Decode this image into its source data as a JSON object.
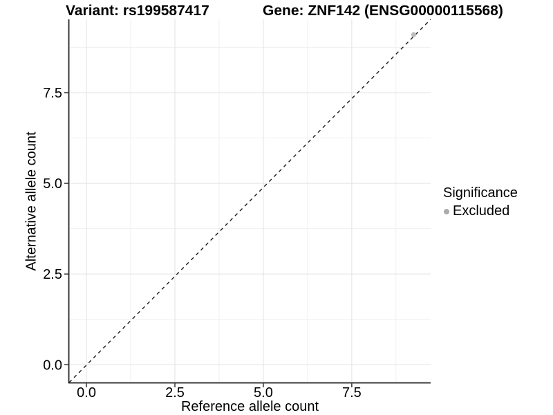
{
  "figure": {
    "title_left": "Variant: rs199587417",
    "title_right": "Gene: ZNF142 (ENSG00000115568)"
  },
  "chart_data": {
    "type": "scatter",
    "title_left": "Variant: rs199587417",
    "title_right": "Gene: ZNF142 (ENSG00000115568)",
    "xlabel": "Reference allele count",
    "ylabel": "Alternative allele count",
    "xlim": [
      -0.49,
      9.73
    ],
    "ylim": [
      -0.49,
      9.52
    ],
    "x_ticks": [
      0.0,
      2.5,
      5.0,
      7.5
    ],
    "x_tick_labels": [
      "0.0",
      "2.5",
      "5.0",
      "7.5"
    ],
    "y_ticks": [
      0.0,
      2.5,
      5.0,
      7.5
    ],
    "y_tick_labels": [
      "0.0",
      "2.5",
      "5.0",
      "7.5"
    ],
    "x_minor_ticks": [
      1.25,
      3.75,
      6.25,
      8.75
    ],
    "y_minor_ticks": [
      1.25,
      3.75,
      6.25,
      8.75
    ],
    "grid": true,
    "reference_line": {
      "kind": "identity",
      "slope": 1,
      "intercept": 0,
      "style": "dashed",
      "color": "#1a1a1a"
    },
    "series": [
      {
        "name": "Excluded",
        "marker": "circle",
        "color": "#bdbdbd",
        "points": [
          [
            9.25,
            9.1
          ]
        ]
      }
    ],
    "legend": {
      "title": "Significance",
      "position": "right",
      "entries": [
        {
          "label": "Excluded",
          "marker": "circle",
          "color": "#ababab"
        }
      ]
    },
    "colors": {
      "grid_major": "#e2e2e2",
      "grid_minor": "#efefef",
      "axis_line": "#3a3a3a",
      "tick_mark": "#333333",
      "text": "#000000"
    }
  }
}
